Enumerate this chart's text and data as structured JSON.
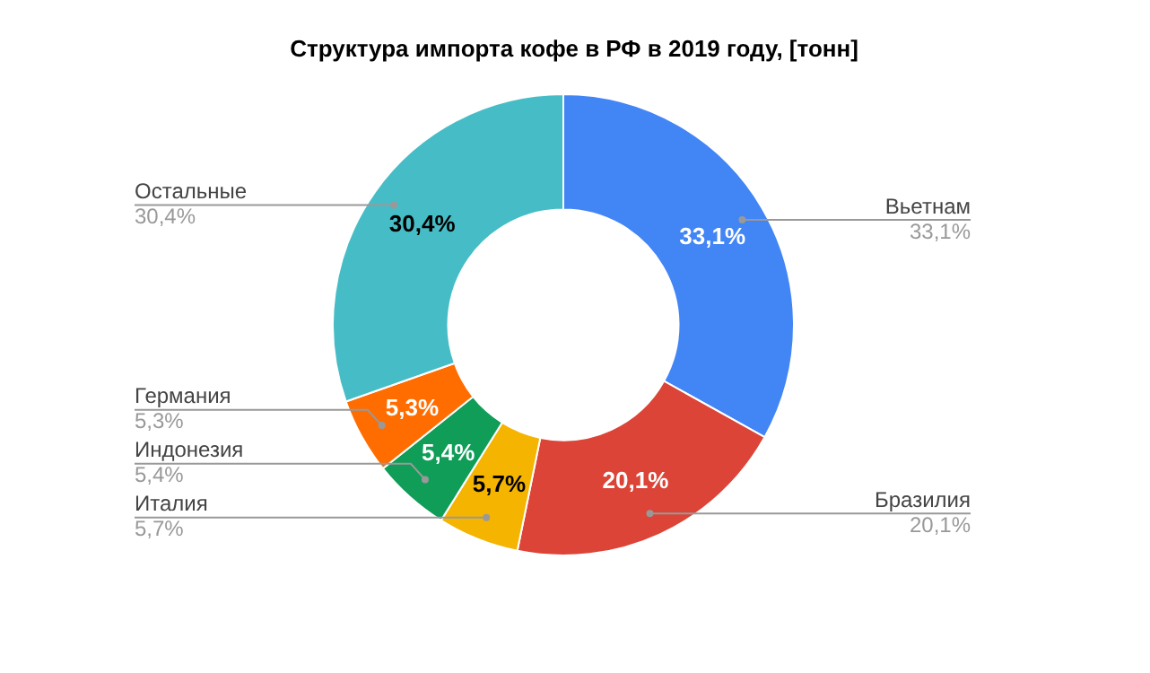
{
  "chart_data": {
    "type": "donut",
    "title": "Структура импорта кофе в РФ в 2019 году, [тонн]",
    "categories": [
      "Вьетнам",
      "Бразилия",
      "Италия",
      "Индонезия",
      "Германия",
      "Остальные"
    ],
    "values": [
      33.1,
      20.1,
      5.7,
      5.4,
      5.3,
      30.4
    ],
    "colors": [
      "#4285f4",
      "#db4437",
      "#f4b400",
      "#0f9d58",
      "#ff6d01",
      "#46bdc6"
    ],
    "value_labels": [
      "33,1%",
      "20,1%",
      "5,7%",
      "5,4%",
      "5,3%",
      "30,4%"
    ],
    "legend": false
  }
}
